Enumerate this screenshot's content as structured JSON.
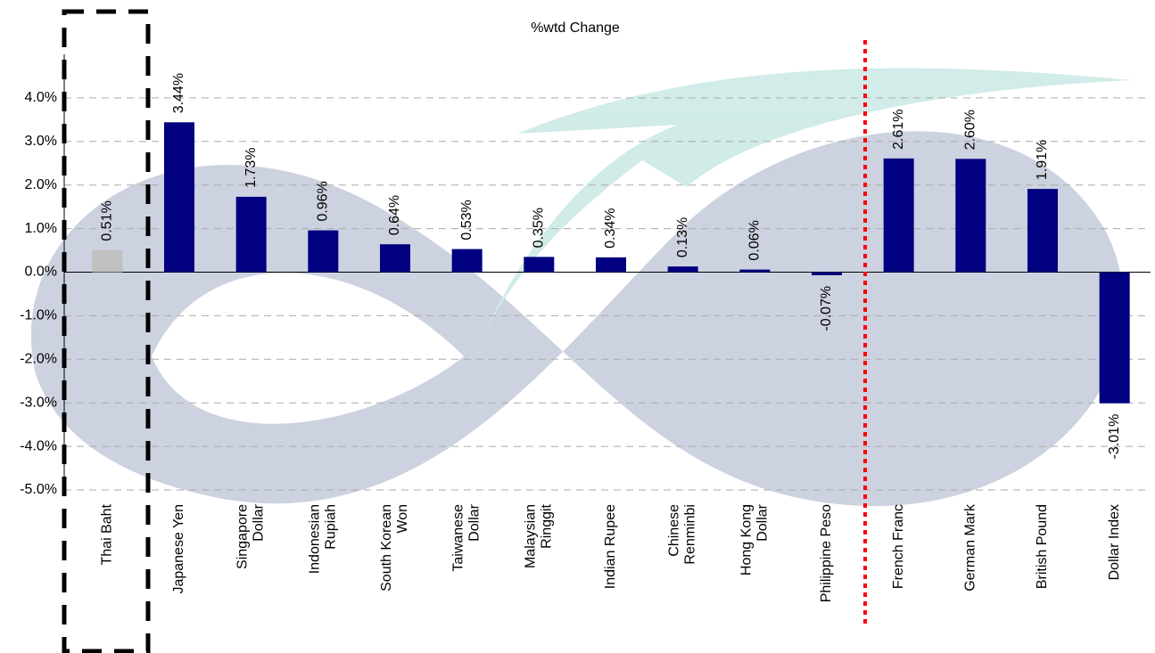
{
  "chart_data": {
    "type": "bar",
    "title": "%wtd Change",
    "categories": [
      "Thai Baht",
      "Japanese Yen",
      "Singapore\nDollar",
      "Indonesian\nRupiah",
      "South Korean\nWon",
      "Taiwanese\nDollar",
      "Malaysian\nRinggit",
      "Indian Rupee",
      "Chinese\nRenminbi",
      "Hong Kong\nDollar",
      "Philippine Peso",
      "French Franc",
      "German Mark",
      "British Pound",
      "Dollar Index"
    ],
    "values": [
      0.51,
      3.44,
      1.73,
      0.96,
      0.64,
      0.53,
      0.35,
      0.34,
      0.13,
      0.06,
      -0.07,
      2.61,
      2.6,
      1.91,
      -3.01
    ],
    "value_labels": [
      "0.51%",
      "3.44%",
      "1.73%",
      "0.96%",
      "0.64%",
      "0.53%",
      "0.35%",
      "0.34%",
      "0.13%",
      "0.06%",
      "-0.07%",
      "2.61%",
      "2.60%",
      "1.91%",
      "-3.01%"
    ],
    "colors": [
      "#c0c0c0",
      "#000080",
      "#000080",
      "#000080",
      "#000080",
      "#000080",
      "#000080",
      "#000080",
      "#000080",
      "#000080",
      "#000080",
      "#000080",
      "#000080",
      "#000080",
      "#000080"
    ],
    "ylim": [
      -5,
      5
    ],
    "yticks": [
      {
        "value": -5,
        "label": "-5.0%"
      },
      {
        "value": -4,
        "label": "-4.0%"
      },
      {
        "value": -3,
        "label": "-3.0%"
      },
      {
        "value": -2,
        "label": "-2.0%"
      },
      {
        "value": -1,
        "label": "-1.0%"
      },
      {
        "value": 0,
        "label": "0.0%"
      },
      {
        "value": 1,
        "label": "1.0%"
      },
      {
        "value": 2,
        "label": "2.0%"
      },
      {
        "value": 3,
        "label": "3.0%"
      },
      {
        "value": 4,
        "label": "4.0%"
      }
    ],
    "grid": true
  }
}
